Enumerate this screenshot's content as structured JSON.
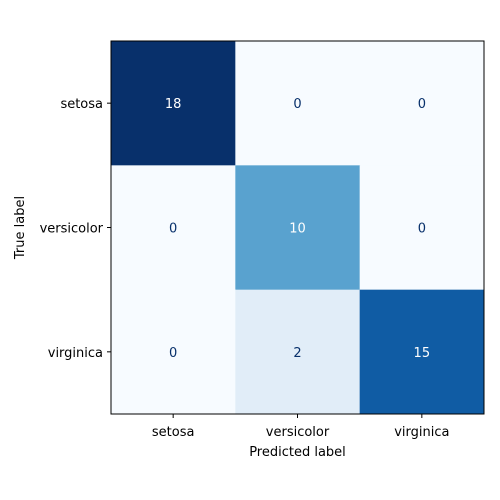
{
  "chart_data": {
    "type": "heatmap",
    "title": "",
    "xlabel": "Predicted label",
    "ylabel": "True label",
    "x_categories": [
      "setosa",
      "versicolor",
      "virginica"
    ],
    "y_categories": [
      "setosa",
      "versicolor",
      "virginica"
    ],
    "values": [
      [
        18,
        0,
        0
      ],
      [
        0,
        10,
        0
      ],
      [
        0,
        2,
        15
      ]
    ],
    "colormap": "Blues",
    "color_range": [
      0,
      18
    ],
    "colors": {
      "low": "#f7fbff",
      "high": "#08306b",
      "text_dark": "#08306b",
      "text_light": "#ffffff"
    },
    "grid": false,
    "legend": "none"
  }
}
